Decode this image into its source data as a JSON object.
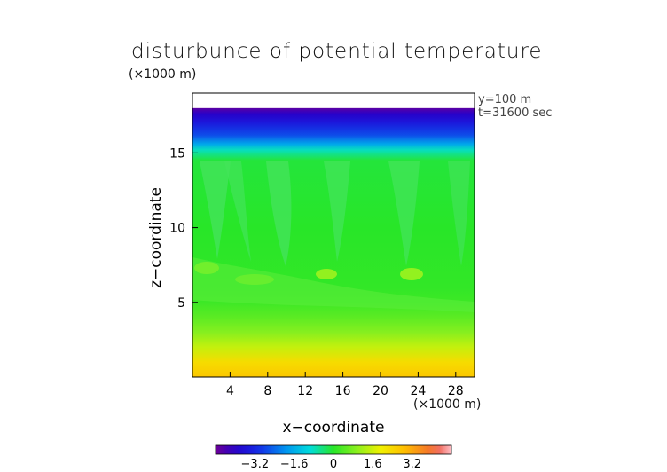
{
  "chart_data": {
    "type": "heatmap",
    "title": "disturbunce of potential temperature",
    "y_unit": "(×1000 m)",
    "x_unit": "(×1000 m)",
    "xlabel": "x−coordinate",
    "ylabel": "z−coordinate",
    "annotations": [
      "y=100 m",
      "t=31600 sec"
    ],
    "xlim": [
      0,
      30
    ],
    "ylim": [
      0,
      19
    ],
    "x_ticks": [
      4,
      8,
      12,
      16,
      20,
      24,
      28
    ],
    "y_ticks": [
      5,
      10,
      15
    ],
    "data_top": 18,
    "colorbar": {
      "ticks": [
        "−3.2",
        "−1.6",
        "0",
        "1.6",
        "3.2"
      ],
      "range": [
        -4.8,
        4.8
      ]
    },
    "vertical_profile": [
      {
        "z": 0.0,
        "value": 2.7
      },
      {
        "z": 1.0,
        "value": 2.3
      },
      {
        "z": 2.0,
        "value": 1.5
      },
      {
        "z": 3.0,
        "value": 0.9
      },
      {
        "z": 4.0,
        "value": 0.5
      },
      {
        "z": 5.0,
        "value": 0.2
      },
      {
        "z": 6.0,
        "value": 0.1
      },
      {
        "z": 10.0,
        "value": 0.0
      },
      {
        "z": 14.5,
        "value": -0.1
      },
      {
        "z": 15.2,
        "value": -0.8
      },
      {
        "z": 15.6,
        "value": -1.7
      },
      {
        "z": 16.2,
        "value": -2.7
      },
      {
        "z": 17.0,
        "value": -3.4
      },
      {
        "z": 17.6,
        "value": -4.0
      },
      {
        "z": 18.0,
        "value": -4.6
      }
    ]
  },
  "colors": {
    "background": "#ffffff",
    "frame": "#000000"
  }
}
